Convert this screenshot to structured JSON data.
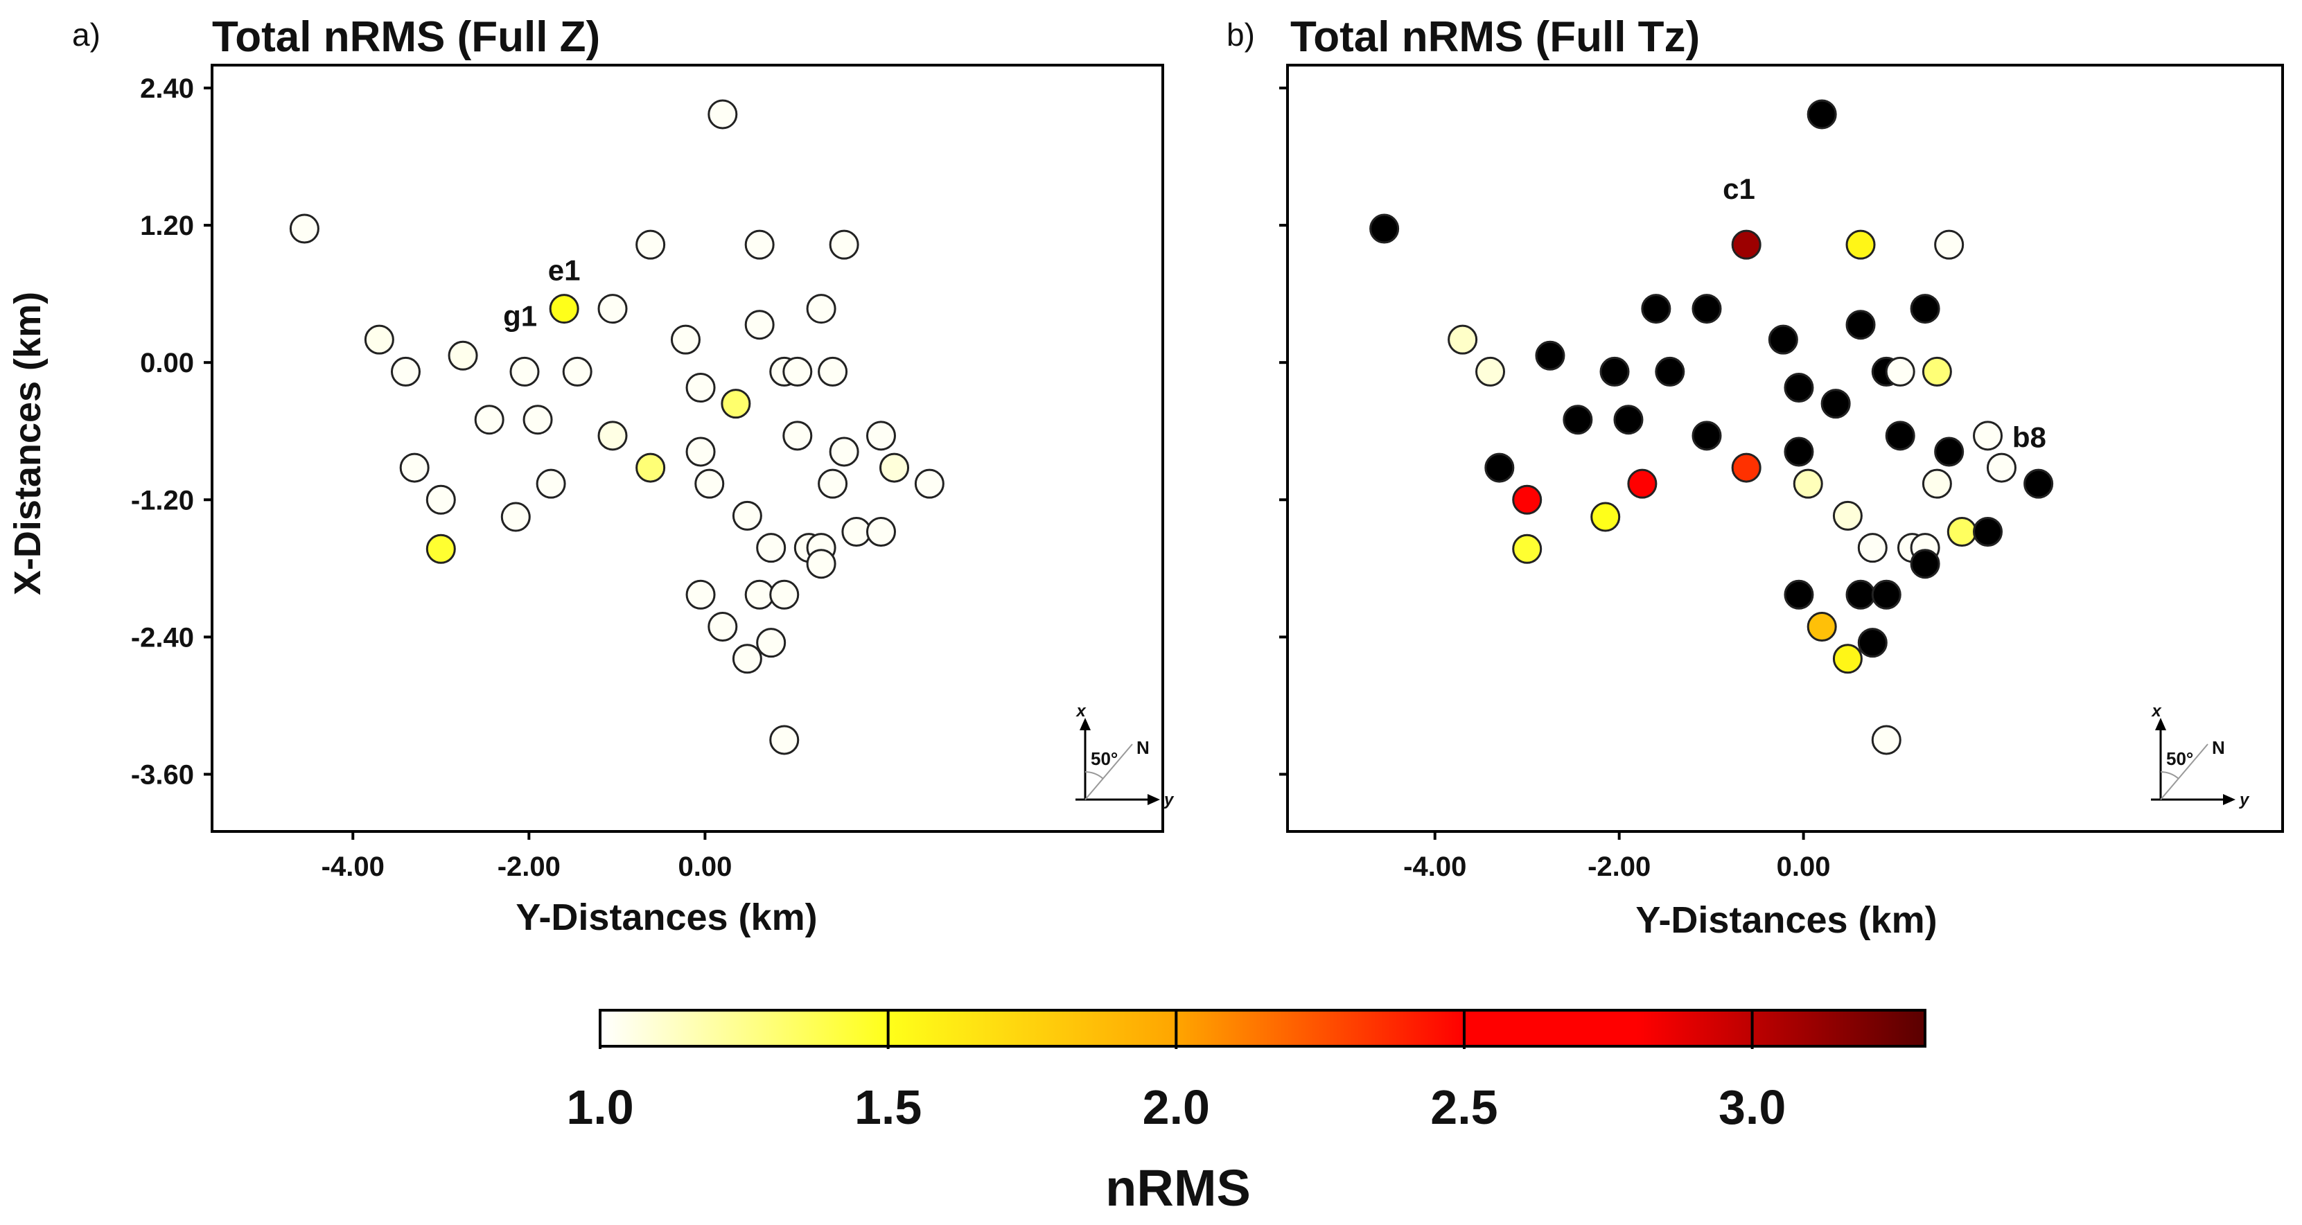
{
  "chart_data": [
    {
      "type": "scatter",
      "panel": "a)",
      "title": "Total nRMS (Full Z)",
      "xlabel": "Y-Distances (km)",
      "ylabel": "X-Distances (km)",
      "xlim": [
        -5.6,
        5.2
      ],
      "ylim": [
        -4.1,
        2.6
      ],
      "xticks": [
        "-4.00",
        "-2.00",
        "0.00"
      ],
      "xtick_values": [
        -4,
        -2,
        0
      ],
      "yticks": [
        "2.40",
        "1.20",
        "0.00",
        "-1.20",
        "-2.40",
        "-3.60"
      ],
      "ytick_values": [
        2.4,
        1.2,
        0,
        -1.2,
        -2.4,
        -3.6
      ],
      "site_labels": [
        {
          "text": "e1",
          "y": -1.6,
          "x": 0.72
        },
        {
          "text": "g1",
          "y": -2.1,
          "x": 0.32
        }
      ],
      "points": [
        {
          "y": -4.55,
          "x": 1.17,
          "nrms": 1.02
        },
        {
          "y": -3.7,
          "x": 0.2,
          "nrms": 1.04
        },
        {
          "y": -3.4,
          "x": -0.08,
          "nrms": 1.02
        },
        {
          "y": -3.3,
          "x": -0.92,
          "nrms": 1.02
        },
        {
          "y": -3.0,
          "x": -1.2,
          "nrms": 1.02
        },
        {
          "y": -3.0,
          "x": -1.63,
          "nrms": 1.45
        },
        {
          "y": -2.75,
          "x": 0.06,
          "nrms": 1.04
        },
        {
          "y": -2.45,
          "x": -0.5,
          "nrms": 1.02
        },
        {
          "y": -2.15,
          "x": -1.35,
          "nrms": 1.02
        },
        {
          "y": -2.05,
          "x": -0.08,
          "nrms": 1.02
        },
        {
          "y": -1.9,
          "x": -0.5,
          "nrms": 1.02
        },
        {
          "y": -1.75,
          "x": -1.06,
          "nrms": 1.02
        },
        {
          "y": -1.6,
          "x": 0.47,
          "nrms": 1.5
        },
        {
          "y": -1.45,
          "x": -0.08,
          "nrms": 1.02
        },
        {
          "y": -1.05,
          "x": 0.47,
          "nrms": 1.02
        },
        {
          "y": -1.05,
          "x": -0.64,
          "nrms": 1.06
        },
        {
          "y": -0.62,
          "x": 1.03,
          "nrms": 1.02
        },
        {
          "y": -0.62,
          "x": -0.92,
          "nrms": 1.3
        },
        {
          "y": -0.22,
          "x": 0.2,
          "nrms": 1.02
        },
        {
          "y": -0.05,
          "x": -0.22,
          "nrms": 1.02
        },
        {
          "y": -0.05,
          "x": -0.78,
          "nrms": 1.02
        },
        {
          "y": 0.05,
          "x": -1.06,
          "nrms": 1.02
        },
        {
          "y": -0.05,
          "x": -2.03,
          "nrms": 1.02
        },
        {
          "y": 0.2,
          "x": 2.17,
          "nrms": 1.02
        },
        {
          "y": 0.2,
          "x": -2.31,
          "nrms": 1.02
        },
        {
          "y": 0.35,
          "x": -0.36,
          "nrms": 1.32
        },
        {
          "y": 0.48,
          "x": -1.34,
          "nrms": 1.02
        },
        {
          "y": 0.48,
          "x": -2.59,
          "nrms": 1.02
        },
        {
          "y": 0.62,
          "x": 1.03,
          "nrms": 1.02
        },
        {
          "y": 0.62,
          "x": 0.33,
          "nrms": 1.02
        },
        {
          "y": 0.62,
          "x": -2.03,
          "nrms": 1.02
        },
        {
          "y": 0.75,
          "x": -1.62,
          "nrms": 1.02
        },
        {
          "y": 0.75,
          "x": -2.45,
          "nrms": 1.02
        },
        {
          "y": 0.9,
          "x": -0.08,
          "nrms": 1.02
        },
        {
          "y": 0.9,
          "x": -2.03,
          "nrms": 1.02
        },
        {
          "y": 0.9,
          "x": -3.3,
          "nrms": 1.02
        },
        {
          "y": 1.05,
          "x": -0.08,
          "nrms": 1.02
        },
        {
          "y": 1.05,
          "x": -0.64,
          "nrms": 1.02
        },
        {
          "y": 1.18,
          "x": -1.62,
          "nrms": 1.02
        },
        {
          "y": 1.32,
          "x": 0.47,
          "nrms": 1.02
        },
        {
          "y": 1.32,
          "x": -1.62,
          "nrms": 1.02
        },
        {
          "y": 1.32,
          "x": -1.76,
          "nrms": 1.02
        },
        {
          "y": 1.45,
          "x": -0.08,
          "nrms": 1.02
        },
        {
          "y": 1.45,
          "x": -1.06,
          "nrms": 1.02
        },
        {
          "y": 1.58,
          "x": 1.03,
          "nrms": 1.02
        },
        {
          "y": 1.58,
          "x": -0.78,
          "nrms": 1.02
        },
        {
          "y": 1.72,
          "x": -1.48,
          "nrms": 1.02
        },
        {
          "y": 2.0,
          "x": -0.64,
          "nrms": 1.02
        },
        {
          "y": 2.0,
          "x": -1.48,
          "nrms": 1.02
        },
        {
          "y": 2.15,
          "x": -0.92,
          "nrms": 1.08
        },
        {
          "y": 2.55,
          "x": -1.06,
          "nrms": 1.02
        }
      ]
    },
    {
      "type": "scatter",
      "panel": "b)",
      "title": "Total nRMS (Full Tz)",
      "xlabel": "Y-Distances (km)",
      "ylabel": "",
      "xlim": [
        -5.6,
        5.2
      ],
      "ylim": [
        -4.1,
        2.6
      ],
      "xticks": [
        "-4.00",
        "-2.00",
        "0.00"
      ],
      "xtick_values": [
        -4,
        -2,
        0
      ],
      "yticks": [],
      "ytick_values": [
        2.4,
        1.2,
        0,
        -1.2,
        -2.4,
        -3.6
      ],
      "site_labels": [
        {
          "text": "c1",
          "y": -0.7,
          "x": 1.43
        },
        {
          "text": "b8",
          "y": 2.45,
          "x": -0.74
        }
      ],
      "points": [
        {
          "y": -4.55,
          "x": 1.17,
          "nrms": 3.4
        },
        {
          "y": -3.7,
          "x": 0.2,
          "nrms": 1.12
        },
        {
          "y": -3.4,
          "x": -0.08,
          "nrms": 1.08
        },
        {
          "y": -3.3,
          "x": -0.92,
          "nrms": 3.4
        },
        {
          "y": -3.0,
          "x": -1.2,
          "nrms": 2.55
        },
        {
          "y": -3.0,
          "x": -1.63,
          "nrms": 1.45
        },
        {
          "y": -2.75,
          "x": 0.06,
          "nrms": 3.4
        },
        {
          "y": -2.45,
          "x": -0.5,
          "nrms": 3.4
        },
        {
          "y": -2.15,
          "x": -1.35,
          "nrms": 1.5
        },
        {
          "y": -2.05,
          "x": -0.08,
          "nrms": 3.4
        },
        {
          "y": -1.9,
          "x": -0.5,
          "nrms": 3.4
        },
        {
          "y": -1.75,
          "x": -1.06,
          "nrms": 2.55
        },
        {
          "y": -1.6,
          "x": 0.47,
          "nrms": 3.4
        },
        {
          "y": -1.45,
          "x": -0.08,
          "nrms": 3.4
        },
        {
          "y": -1.05,
          "x": 0.47,
          "nrms": 3.4
        },
        {
          "y": -1.05,
          "x": -0.64,
          "nrms": 3.4
        },
        {
          "y": -0.62,
          "x": 1.03,
          "nrms": 3.1
        },
        {
          "y": -0.62,
          "x": -0.92,
          "nrms": 2.35
        },
        {
          "y": -0.22,
          "x": 0.2,
          "nrms": 3.4
        },
        {
          "y": -0.05,
          "x": -0.22,
          "nrms": 3.4
        },
        {
          "y": -0.05,
          "x": -0.78,
          "nrms": 3.4
        },
        {
          "y": 0.05,
          "x": -1.06,
          "nrms": 1.15
        },
        {
          "y": -0.05,
          "x": -2.03,
          "nrms": 3.4
        },
        {
          "y": 0.2,
          "x": 2.17,
          "nrms": 3.4
        },
        {
          "y": 0.2,
          "x": -2.31,
          "nrms": 1.85
        },
        {
          "y": 0.35,
          "x": -0.36,
          "nrms": 3.4
        },
        {
          "y": 0.48,
          "x": -1.34,
          "nrms": 1.08
        },
        {
          "y": 0.48,
          "x": -2.59,
          "nrms": 1.55
        },
        {
          "y": 0.62,
          "x": 1.03,
          "nrms": 1.55
        },
        {
          "y": 0.62,
          "x": 0.33,
          "nrms": 3.4
        },
        {
          "y": 0.62,
          "x": -2.03,
          "nrms": 3.4
        },
        {
          "y": 0.75,
          "x": -1.62,
          "nrms": 1.02
        },
        {
          "y": 0.75,
          "x": -2.45,
          "nrms": 3.4
        },
        {
          "y": 0.9,
          "x": -0.08,
          "nrms": 3.4
        },
        {
          "y": 0.9,
          "x": -2.03,
          "nrms": 3.4
        },
        {
          "y": 0.9,
          "x": -3.3,
          "nrms": 1.02
        },
        {
          "y": 1.05,
          "x": -0.08,
          "nrms": 1.02
        },
        {
          "y": 1.05,
          "x": -0.64,
          "nrms": 3.4
        },
        {
          "y": 1.18,
          "x": -1.62,
          "nrms": 1.02
        },
        {
          "y": 1.32,
          "x": 0.47,
          "nrms": 3.4
        },
        {
          "y": 1.32,
          "x": -1.62,
          "nrms": 1.02
        },
        {
          "y": 1.32,
          "x": -1.76,
          "nrms": 3.4
        },
        {
          "y": 1.45,
          "x": -0.08,
          "nrms": 1.3
        },
        {
          "y": 1.45,
          "x": -1.06,
          "nrms": 1.04
        },
        {
          "y": 1.58,
          "x": 1.03,
          "nrms": 1.02
        },
        {
          "y": 1.58,
          "x": -0.78,
          "nrms": 3.4
        },
        {
          "y": 1.72,
          "x": -1.48,
          "nrms": 1.35
        },
        {
          "y": 2.0,
          "x": -0.64,
          "nrms": 1.02
        },
        {
          "y": 2.0,
          "x": -1.48,
          "nrms": 3.4
        },
        {
          "y": 2.15,
          "x": -0.92,
          "nrms": 1.02
        },
        {
          "y": 2.55,
          "x": -1.06,
          "nrms": 3.4
        }
      ]
    }
  ],
  "compass": {
    "axis_x": "x",
    "axis_y": "y",
    "angle": "50°",
    "north": "N"
  },
  "colorbar": {
    "title": "nRMS",
    "range": [
      1.0,
      3.3
    ],
    "ticks": [
      "1.0",
      "1.5",
      "2.0",
      "2.5",
      "3.0"
    ],
    "tick_values": [
      1.0,
      1.5,
      2.0,
      2.5,
      3.0
    ],
    "colors": [
      "#ffffff",
      "#ffff1a",
      "#ffa500",
      "#ff0000",
      "#ff0000",
      "#5a0000"
    ],
    "color_stops": [
      1.0,
      1.5,
      2.0,
      2.5,
      2.8,
      3.3
    ]
  }
}
